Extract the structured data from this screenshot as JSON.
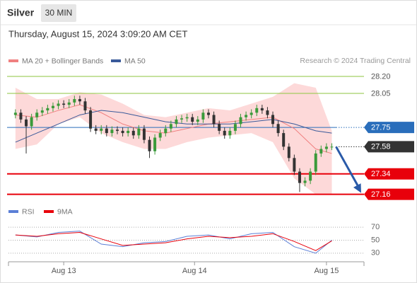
{
  "chart_data": {
    "type": "candlestick",
    "title": "Silver",
    "timeframe": "30 MIN",
    "subtitle": "Thursday, August 15, 2024 3:09:20 AM CET",
    "source": "Research © 2024 Trading Central",
    "up_color": "#3a9a3a",
    "down_color": "#333333",
    "x": [
      0,
      1,
      2,
      3,
      4,
      5,
      6,
      7,
      8,
      9,
      10,
      11,
      12,
      13,
      14,
      15,
      16,
      17,
      18,
      19,
      20,
      21,
      22,
      23,
      24,
      25,
      26,
      27,
      28,
      29,
      30,
      31,
      32,
      33,
      34,
      35,
      36,
      37,
      38,
      39,
      40,
      41,
      42,
      43,
      44,
      45,
      46,
      47,
      48,
      49,
      50,
      51,
      52,
      53,
      54,
      55,
      56,
      57,
      58,
      59
    ],
    "open": [
      27.86,
      27.88,
      27.82,
      27.76,
      27.84,
      27.88,
      27.9,
      27.92,
      27.94,
      27.96,
      27.95,
      27.97,
      28.0,
      27.98,
      27.9,
      27.74,
      27.72,
      27.74,
      27.7,
      27.73,
      27.72,
      27.7,
      27.72,
      27.68,
      27.74,
      27.64,
      27.54,
      27.66,
      27.7,
      27.74,
      27.78,
      27.82,
      27.83,
      27.84,
      27.8,
      27.82,
      27.88,
      27.86,
      27.78,
      27.72,
      27.68,
      27.72,
      27.78,
      27.84,
      27.86,
      27.88,
      27.92,
      27.9,
      27.86,
      27.78,
      27.7,
      27.58,
      27.48,
      27.36,
      27.26,
      27.28,
      27.36,
      27.52,
      27.56,
      27.58
    ],
    "high": [
      27.91,
      27.91,
      27.85,
      27.87,
      27.91,
      27.93,
      27.95,
      27.97,
      27.99,
      27.99,
      28.0,
      28.03,
      28.03,
      28.01,
      27.93,
      27.77,
      27.77,
      27.77,
      27.76,
      27.76,
      27.75,
      27.75,
      27.75,
      27.77,
      27.77,
      27.67,
      27.69,
      27.73,
      27.77,
      27.81,
      27.85,
      27.86,
      27.87,
      27.87,
      27.85,
      27.91,
      27.91,
      27.89,
      27.81,
      27.75,
      27.75,
      27.81,
      27.87,
      27.89,
      27.91,
      27.95,
      27.95,
      27.93,
      27.89,
      27.81,
      27.73,
      27.61,
      27.51,
      27.39,
      27.31,
      27.39,
      27.55,
      27.59,
      27.61,
      27.61
    ],
    "low": [
      27.83,
      27.79,
      27.52,
      27.73,
      27.81,
      27.85,
      27.87,
      27.89,
      27.91,
      27.92,
      27.92,
      27.94,
      27.95,
      27.87,
      27.71,
      27.69,
      27.69,
      27.67,
      27.67,
      27.69,
      27.67,
      27.67,
      27.65,
      27.65,
      27.61,
      27.48,
      27.51,
      27.63,
      27.67,
      27.71,
      27.75,
      27.79,
      27.8,
      27.77,
      27.77,
      27.79,
      27.83,
      27.75,
      27.69,
      27.65,
      27.65,
      27.69,
      27.75,
      27.81,
      27.83,
      27.85,
      27.87,
      27.83,
      27.75,
      27.67,
      27.55,
      27.45,
      27.33,
      27.18,
      27.23,
      27.25,
      27.33,
      27.49,
      27.53,
      27.55
    ],
    "close": [
      27.88,
      27.82,
      27.76,
      27.84,
      27.88,
      27.9,
      27.92,
      27.94,
      27.96,
      27.95,
      27.97,
      28.0,
      27.98,
      27.9,
      27.74,
      27.72,
      27.74,
      27.7,
      27.73,
      27.72,
      27.7,
      27.72,
      27.68,
      27.74,
      27.64,
      27.54,
      27.66,
      27.7,
      27.74,
      27.78,
      27.82,
      27.83,
      27.84,
      27.8,
      27.82,
      27.88,
      27.86,
      27.78,
      27.72,
      27.68,
      27.72,
      27.78,
      27.84,
      27.86,
      27.88,
      27.92,
      27.9,
      27.86,
      27.78,
      27.7,
      27.58,
      27.48,
      27.36,
      27.26,
      27.28,
      27.36,
      27.52,
      27.56,
      27.58,
      27.58
    ],
    "xlim": [
      -1.3,
      65
    ],
    "xticks": [
      {
        "value": 9,
        "label": "Aug 13"
      },
      {
        "value": 33.4,
        "label": "Aug 14"
      },
      {
        "value": 58,
        "label": "Aug 15"
      }
    ],
    "ylim": [
      27.12,
      28.25
    ],
    "levels": [
      {
        "value": 28.2,
        "label": "28.20",
        "color": "#8dc63f",
        "box": false,
        "style": "solid",
        "width": 1
      },
      {
        "value": 28.05,
        "label": "28.05",
        "color": "#8dc63f",
        "box": false,
        "style": "solid",
        "width": 1
      },
      {
        "value": 27.75,
        "label": "27.75",
        "color": "#2a6ebb",
        "box": true,
        "style": "solid",
        "width": 1
      },
      {
        "value": 27.58,
        "label": "27.58",
        "color": "#333333",
        "box": true,
        "style": "dotted",
        "width": 1
      },
      {
        "value": 27.34,
        "label": "27.34",
        "color": "#e8000b",
        "box": true,
        "style": "solid",
        "width": 2
      },
      {
        "value": 27.16,
        "label": "27.16",
        "color": "#e8000b",
        "box": true,
        "style": "solid",
        "width": 2
      }
    ],
    "series": [
      {
        "name": "MA 20 + Bollinger Bands",
        "color": "#f08080",
        "band_color": "#fdd9d9",
        "x": [
          0,
          4,
          8,
          12,
          16,
          20,
          24,
          28,
          32,
          36,
          40,
          44,
          48,
          52,
          56,
          59
        ],
        "values": [
          27.86,
          27.84,
          27.9,
          27.95,
          27.88,
          27.78,
          27.72,
          27.7,
          27.74,
          27.78,
          27.8,
          27.82,
          27.84,
          27.74,
          27.56,
          27.52
        ],
        "upper": [
          28.1,
          28.0,
          28.0,
          28.06,
          28.04,
          27.96,
          27.86,
          27.84,
          27.88,
          27.92,
          27.9,
          27.96,
          28.02,
          28.14,
          28.1,
          27.72
        ],
        "lower": [
          27.56,
          27.6,
          27.78,
          27.84,
          27.7,
          27.62,
          27.56,
          27.56,
          27.62,
          27.66,
          27.68,
          27.7,
          27.62,
          27.3,
          27.16,
          27.16
        ]
      },
      {
        "name": "MA 50",
        "color": "#3a5a9a",
        "x": [
          0,
          4,
          8,
          12,
          16,
          20,
          24,
          28,
          32,
          36,
          40,
          44,
          48,
          52,
          56,
          59
        ],
        "values": [
          27.62,
          27.7,
          27.78,
          27.86,
          27.9,
          27.88,
          27.84,
          27.8,
          27.78,
          27.78,
          27.78,
          27.8,
          27.82,
          27.78,
          27.72,
          27.7
        ]
      }
    ],
    "rsi": {
      "type": "line",
      "ylim": [
        20,
        80
      ],
      "yticks": [
        70,
        50,
        30
      ],
      "series": [
        {
          "name": "RSI",
          "color": "#5b7fd6",
          "x": [
            0,
            4,
            8,
            12,
            16,
            20,
            24,
            28,
            32,
            36,
            40,
            44,
            48,
            52,
            56,
            59
          ],
          "values": [
            58,
            55,
            62,
            64,
            44,
            40,
            46,
            48,
            56,
            58,
            52,
            60,
            62,
            40,
            30,
            50
          ]
        },
        {
          "name": "9MA",
          "color": "#e8000b",
          "x": [
            0,
            4,
            8,
            12,
            16,
            20,
            24,
            28,
            32,
            36,
            40,
            44,
            48,
            52,
            56,
            59
          ],
          "values": [
            58,
            56,
            60,
            62,
            52,
            42,
            44,
            46,
            52,
            56,
            54,
            56,
            60,
            48,
            34,
            49
          ]
        }
      ]
    }
  }
}
